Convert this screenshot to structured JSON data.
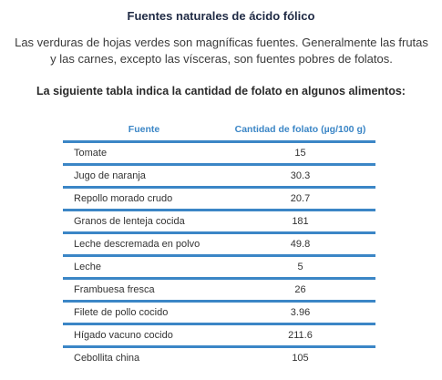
{
  "title": "Fuentes naturales de ácido fólico",
  "intro": "Las verduras de hojas verdes son magníficas fuentes. Generalmente las frutas y las carnes, excepto las vísceras, son fuentes pobres de folatos.",
  "table_caption": "La siguiente tabla indica la cantidad de folato en algunos alimentos:",
  "table": {
    "headers": [
      "Fuente",
      "Cantidad de folato (µg/100 g)"
    ],
    "rows": [
      {
        "food": "Tomate",
        "value": "15"
      },
      {
        "food": "Jugo de naranja",
        "value": "30.3"
      },
      {
        "food": "Repollo morado crudo",
        "value": "20.7"
      },
      {
        "food": "Granos de lenteja cocida",
        "value": "181"
      },
      {
        "food": "Leche descremada en polvo",
        "value": "49.8"
      },
      {
        "food": "Leche",
        "value": "5"
      },
      {
        "food": "Frambuesa fresca",
        "value": "26"
      },
      {
        "food": "Filete de pollo cocido",
        "value": "3.96"
      },
      {
        "food": "Hígado vacuno cocido",
        "value": "211.6"
      },
      {
        "food": "Cebollita china",
        "value": "105"
      }
    ]
  },
  "colors": {
    "accent": "#3b86c6",
    "title": "#1f2a44"
  }
}
